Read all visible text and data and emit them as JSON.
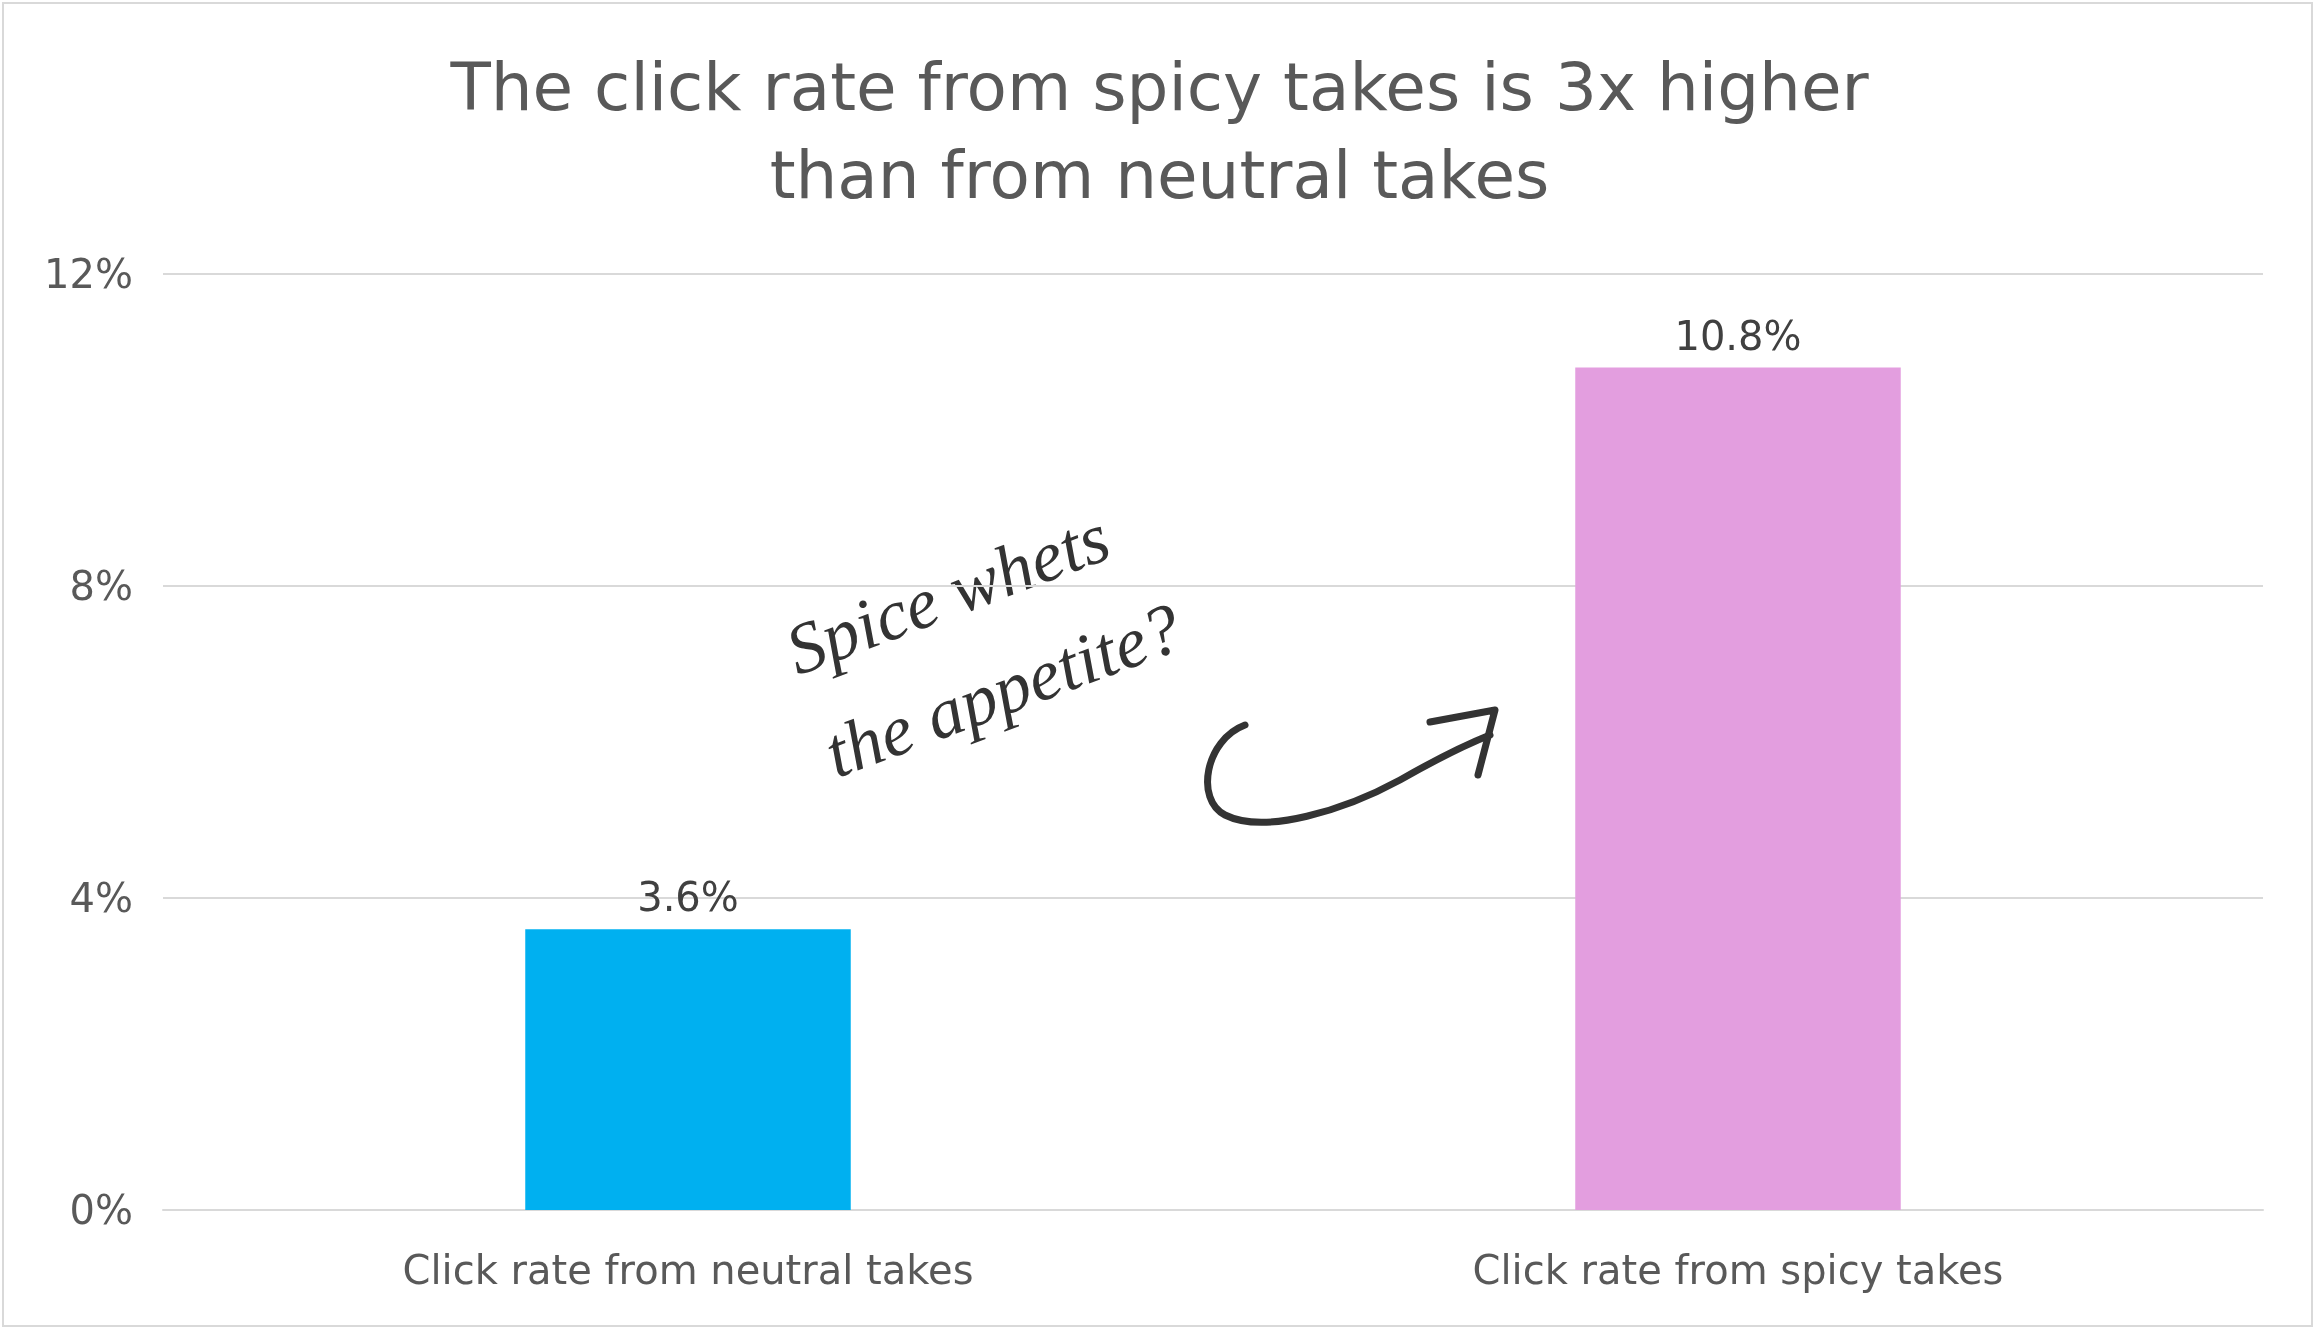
{
  "chart_data": {
    "type": "bar",
    "title": "The click rate from spicy takes is 3x higher\nthan from neutral takes",
    "categories": [
      "Click rate from neutral takes",
      "Click rate from spicy takes"
    ],
    "values": [
      3.6,
      10.8
    ],
    "colors": [
      "#00b0f0",
      "#e39edf"
    ],
    "value_labels": [
      "3.6%",
      "10.8%"
    ],
    "ylim": [
      0,
      12
    ],
    "yticks": [
      {
        "value": 0,
        "label": "0%"
      },
      {
        "value": 4,
        "label": "4%"
      },
      {
        "value": 8,
        "label": "8%"
      },
      {
        "value": 12,
        "label": "12%"
      }
    ],
    "grid": "y",
    "annotations": [
      "Spice whets the appetite?"
    ]
  }
}
